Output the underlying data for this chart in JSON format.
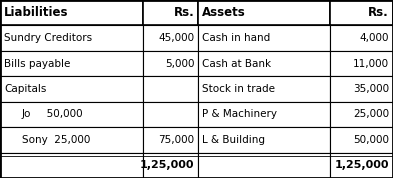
{
  "c0": 0.0,
  "c1": 0.365,
  "c2": 0.505,
  "c3": 0.84,
  "c4": 1.0,
  "n_total_rows": 7,
  "header_row": 0,
  "total_row": 6,
  "liab_col_labels": [
    "Sundry Creditors",
    "Bills payable",
    "Capitals",
    "Jo     50,000",
    "Sony  25,000"
  ],
  "liab_col_amounts": [
    "45,000",
    "5,000",
    "",
    "",
    "75,000"
  ],
  "asset_col_labels": [
    "Cash in hand",
    "Cash at Bank",
    "Stock in trade",
    "P & Machinery",
    "L & Building"
  ],
  "asset_col_amounts": [
    "4,000",
    "11,000",
    "35,000",
    "25,000",
    "50,000"
  ],
  "total_left": "1,25,000",
  "total_right": "1,25,000",
  "indent_rows": [
    3,
    4
  ],
  "border_color": "#000000",
  "bg_color": "#ffffff",
  "font_size": 7.5,
  "header_font_size": 8.5,
  "total_font_size": 8.0
}
